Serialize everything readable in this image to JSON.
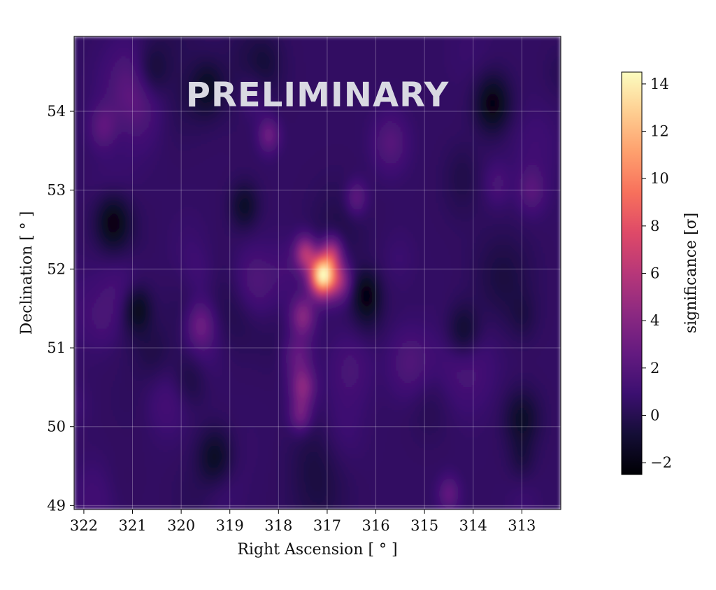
{
  "chart_data": {
    "type": "heatmap",
    "title": "",
    "annotation": "PRELIMINARY",
    "xlabel": "Right Ascension [ ° ]",
    "ylabel": "Declination [ ° ]",
    "xlim": [
      322.2,
      312.2
    ],
    "ylim": [
      48.95,
      54.95
    ],
    "xticks": [
      322,
      321,
      320,
      319,
      318,
      317,
      316,
      315,
      314,
      313
    ],
    "yticks": [
      49,
      50,
      51,
      52,
      53,
      54
    ],
    "grid": true,
    "colormap": "magma",
    "colorbar": {
      "label": "significance [σ]",
      "range": [
        -2.5,
        14.5
      ],
      "ticks": [
        -2,
        0,
        2,
        4,
        6,
        8,
        10,
        12,
        14
      ],
      "tick_labels": [
        "−2",
        "0",
        "2",
        "4",
        "6",
        "8",
        "10",
        "12",
        "14"
      ]
    },
    "background_level": 0.5,
    "hotspots": [
      {
        "ra": 317.1,
        "dec": 51.92,
        "significance": 14.0,
        "sigma": 0.18
      },
      {
        "ra": 317.45,
        "dec": 52.2,
        "significance": 5.5,
        "sigma": 0.15
      },
      {
        "ra": 316.9,
        "dec": 52.2,
        "significance": 5.0,
        "sigma": 0.15
      },
      {
        "ra": 316.75,
        "dec": 51.85,
        "significance": 4.5,
        "sigma": 0.17
      },
      {
        "ra": 317.5,
        "dec": 51.4,
        "significance": 4.0,
        "sigma": 0.17
      },
      {
        "ra": 317.5,
        "dec": 50.5,
        "significance": 4.0,
        "sigma": 0.17
      },
      {
        "ra": 317.55,
        "dec": 50.15,
        "significance": 3.0,
        "sigma": 0.15
      },
      {
        "ra": 317.6,
        "dec": 50.9,
        "significance": 2.5,
        "sigma": 0.2
      },
      {
        "ra": 319.6,
        "dec": 51.3,
        "significance": 3.0,
        "sigma": 0.2
      },
      {
        "ra": 318.2,
        "dec": 53.7,
        "significance": 3.0,
        "sigma": 0.15
      },
      {
        "ra": 321.6,
        "dec": 53.8,
        "significance": 2.5,
        "sigma": 0.2
      },
      {
        "ra": 316.4,
        "dec": 52.9,
        "significance": 2.5,
        "sigma": 0.15
      },
      {
        "ra": 314.5,
        "dec": 49.15,
        "significance": 2.5,
        "sigma": 0.15
      },
      {
        "ra": 312.8,
        "dec": 53.0,
        "significance": 2.0,
        "sigma": 0.2
      },
      {
        "ra": 315.7,
        "dec": 53.6,
        "significance": 2.0,
        "sigma": 0.25
      },
      {
        "ra": 318.5,
        "dec": 51.8,
        "significance": 2.0,
        "sigma": 0.3
      },
      {
        "ra": 315.3,
        "dec": 50.8,
        "significance": 1.8,
        "sigma": 0.3
      },
      {
        "ra": 320.3,
        "dec": 50.3,
        "significance": 1.5,
        "sigma": 0.3
      }
    ],
    "coldspots": [
      {
        "ra": 321.4,
        "dec": 52.6,
        "significance": -2.0,
        "sigma": 0.25
      },
      {
        "ra": 313.6,
        "dec": 54.1,
        "significance": -2.0,
        "sigma": 0.25
      },
      {
        "ra": 316.2,
        "dec": 51.7,
        "significance": -1.5,
        "sigma": 0.2
      },
      {
        "ra": 319.3,
        "dec": 49.6,
        "significance": -1.5,
        "sigma": 0.25
      },
      {
        "ra": 320.6,
        "dec": 54.5,
        "significance": -1.5,
        "sigma": 0.25
      },
      {
        "ra": 314.2,
        "dec": 51.2,
        "significance": -1.5,
        "sigma": 0.25
      },
      {
        "ra": 318.7,
        "dec": 52.8,
        "significance": -1.2,
        "sigma": 0.2
      },
      {
        "ra": 313.0,
        "dec": 50.1,
        "significance": -1.2,
        "sigma": 0.25
      },
      {
        "ra": 320.9,
        "dec": 51.5,
        "significance": -1.5,
        "sigma": 0.2
      }
    ]
  }
}
